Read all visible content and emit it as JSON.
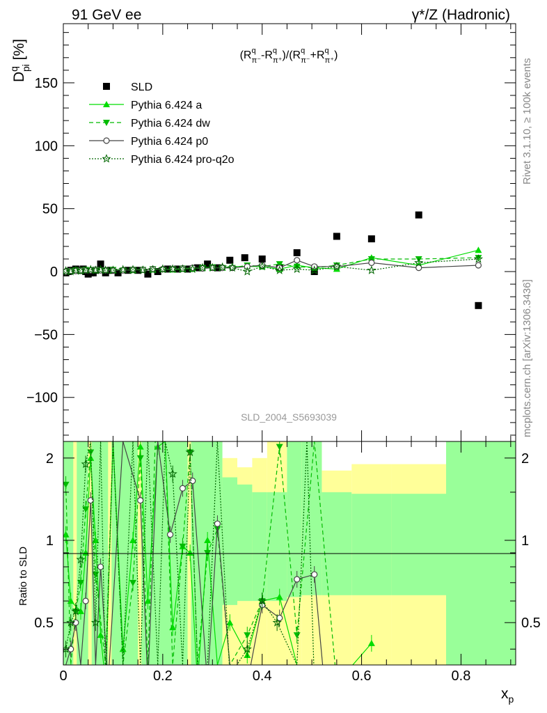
{
  "header": {
    "left": "91 GeV ee",
    "right": "γ*/Z (Hadronic)"
  },
  "side_labels": {
    "rivet": "Rivet 3.1.10, ≥ 100k events",
    "mcplots": "mcplots.cern.ch [arXiv:1306.3436]"
  },
  "chart_data": [
    {
      "type": "scatter",
      "panel": "main",
      "title": "(R^q_π⁻-R^q_π⁺)/(R^q_π⁻+R^q_π⁺)",
      "ylabel": "D^q_pi [%]",
      "xlabel": "x_p",
      "xlim": [
        0,
        0.91
      ],
      "ylim": [
        -135,
        197
      ],
      "yticks": [
        -100,
        -50,
        0,
        50,
        100,
        150
      ],
      "ytick_labels": [
        "−100",
        "−50",
        "0",
        "50",
        "100",
        "150"
      ],
      "watermark": "SLD_2004_S5693039",
      "legend_position": "top-left",
      "series": [
        {
          "name": "SLD",
          "style": "filled-square",
          "color": "#000000",
          "x": [
            0.005,
            0.01,
            0.015,
            0.02,
            0.025,
            0.03,
            0.035,
            0.04,
            0.045,
            0.05,
            0.055,
            0.06,
            0.065,
            0.075,
            0.085,
            0.095,
            0.11,
            0.13,
            0.15,
            0.17,
            0.19,
            0.21,
            0.23,
            0.25,
            0.27,
            0.29,
            0.31,
            0.335,
            0.365,
            0.4,
            0.435,
            0.47,
            0.505,
            0.55,
            0.62,
            0.715,
            0.835
          ],
          "y": [
            -1,
            0,
            1,
            1,
            2,
            1,
            1,
            2,
            0,
            -2,
            -1,
            -1,
            1,
            6,
            -1,
            1,
            -1,
            1,
            1,
            -2,
            0,
            2,
            2,
            2,
            3,
            6,
            3,
            9,
            11,
            10,
            3,
            15,
            0,
            28,
            26,
            45,
            -27
          ]
        },
        {
          "name": "Pythia 6.424 a",
          "style": "line-triangle",
          "color": "#00dd00",
          "x": [
            0.005,
            0.015,
            0.025,
            0.035,
            0.045,
            0.055,
            0.065,
            0.075,
            0.085,
            0.1,
            0.12,
            0.14,
            0.16,
            0.18,
            0.2,
            0.22,
            0.24,
            0.26,
            0.28,
            0.3,
            0.32,
            0.34,
            0.37,
            0.4,
            0.435,
            0.47,
            0.505,
            0.55,
            0.62,
            0.715,
            0.835
          ],
          "y": [
            0,
            0.5,
            1,
            1,
            1.5,
            1.5,
            1,
            1,
            1.5,
            1,
            1.5,
            1,
            2,
            1.5,
            2,
            1.5,
            2,
            2.5,
            3,
            3,
            3,
            4,
            4,
            4,
            2,
            5,
            3,
            2,
            11,
            5,
            17
          ]
        },
        {
          "name": "Pythia 6.424 dw",
          "style": "dashed-triangle-down",
          "color": "#00bb00",
          "x": [
            0.005,
            0.015,
            0.025,
            0.035,
            0.045,
            0.055,
            0.065,
            0.075,
            0.085,
            0.1,
            0.12,
            0.14,
            0.16,
            0.18,
            0.2,
            0.22,
            0.24,
            0.26,
            0.28,
            0.3,
            0.32,
            0.34,
            0.37,
            0.4,
            0.435,
            0.47,
            0.505,
            0.55,
            0.62,
            0.715,
            0.835
          ],
          "y": [
            -0.5,
            0.5,
            1,
            0.5,
            1.5,
            1,
            1.5,
            1,
            1,
            1.5,
            1,
            1.5,
            1.5,
            2,
            1.5,
            2,
            2.5,
            2,
            3,
            3.5,
            3,
            3,
            5,
            4,
            6,
            4,
            3,
            5,
            10,
            10,
            11
          ]
        },
        {
          "name": "Pythia 6.424 p0",
          "style": "line-open-circle",
          "color": "#444444",
          "x": [
            0.005,
            0.015,
            0.025,
            0.035,
            0.045,
            0.055,
            0.065,
            0.075,
            0.085,
            0.1,
            0.12,
            0.14,
            0.16,
            0.18,
            0.2,
            0.22,
            0.24,
            0.26,
            0.28,
            0.3,
            0.32,
            0.34,
            0.37,
            0.4,
            0.435,
            0.47,
            0.505,
            0.55,
            0.62,
            0.715,
            0.835
          ],
          "y": [
            0,
            0.5,
            0.5,
            1,
            1,
            1,
            1.5,
            1,
            1,
            1,
            1,
            1.5,
            1.5,
            2,
            2,
            2,
            2.5,
            3,
            2.5,
            3,
            3,
            3,
            4,
            5,
            3,
            9,
            4,
            4,
            7,
            3,
            5
          ]
        },
        {
          "name": "Pythia 6.424 pro-q2o",
          "style": "dotted-open-star",
          "color": "#006600",
          "x": [
            0.005,
            0.015,
            0.025,
            0.035,
            0.045,
            0.055,
            0.065,
            0.075,
            0.085,
            0.1,
            0.12,
            0.14,
            0.16,
            0.18,
            0.2,
            0.22,
            0.24,
            0.26,
            0.28,
            0.3,
            0.32,
            0.34,
            0.37,
            0.4,
            0.435,
            0.47,
            0.505,
            0.55,
            0.62,
            0.715,
            0.835
          ],
          "y": [
            0.5,
            0,
            1,
            0.5,
            1,
            1.5,
            1,
            1.5,
            1,
            1,
            1.5,
            1.5,
            1,
            1.5,
            2,
            2,
            2,
            2,
            3,
            3,
            3.5,
            3,
            0,
            4,
            1,
            2,
            1,
            4,
            1,
            7,
            10
          ]
        }
      ]
    },
    {
      "type": "line",
      "panel": "ratio",
      "ylabel": "Ratio to SLD",
      "xlabel": "x_p",
      "xlim": [
        0,
        0.91
      ],
      "ylim": [
        0.35,
        2.3
      ],
      "log_y": true,
      "yticks": [
        0.5,
        1,
        2
      ],
      "ytick_labels": [
        "0.5",
        "1",
        "2"
      ],
      "xticks": [
        0,
        0.2,
        0.4,
        0.6,
        0.8
      ],
      "xtick_labels": [
        "0",
        "0.2",
        "0.4",
        "0.6",
        "0.8"
      ],
      "bands": {
        "stat_color": "#99ff99",
        "total_color": "#ffff99",
        "edges": [
          0.32,
          0.35,
          0.38,
          0.41,
          0.45,
          0.48,
          0.52,
          0.58,
          0.66,
          0.77,
          0.91
        ],
        "green_lo": [
          0.58,
          0.6,
          0.6,
          0.6,
          0.62,
          0.63,
          0.63,
          0.63,
          0.63,
          0.35
        ],
        "green_hi": [
          1.7,
          1.6,
          1.5,
          1.5,
          2.3,
          2.3,
          1.5,
          1.48,
          1.48,
          2.3
        ],
        "yellow_lo": [
          0.35,
          0.35,
          0.35,
          0.35,
          0.35,
          0.35,
          0.35,
          0.35,
          0.35,
          0.35
        ],
        "yellow_hi": [
          2.0,
          1.85,
          2.0,
          2.3,
          2.3,
          2.3,
          1.8,
          1.9,
          1.9,
          2.3
        ]
      },
      "series": [
        {
          "name": "Pythia 6.424 a",
          "color": "#00dd00",
          "x": [
            0.005,
            0.015,
            0.035,
            0.045,
            0.055,
            0.065,
            0.075,
            0.085,
            0.1,
            0.12,
            0.14,
            0.155,
            0.17,
            0.19,
            0.205,
            0.22,
            0.24,
            0.255,
            0.27,
            0.29,
            0.31,
            0.335,
            0.37,
            0.4,
            0.435,
            0.47,
            0.505,
            0.55,
            0.62
          ],
          "y": [
            1.05,
            0.6,
            0.55,
            0.9,
            2.0,
            1.0,
            0.45,
            0.3,
            2.3,
            0.4,
            1.0,
            2.2,
            0.6,
            2.2,
            2.3,
            0.48,
            0.95,
            0.9,
            0.3,
            1.0,
            0.35,
            0.5,
            0.38,
            0.6,
            0.62,
            0.35,
            0.3,
            0.3,
            0.42
          ]
        },
        {
          "name": "Pythia 6.424 dw",
          "color": "#00bb00",
          "x": [
            0.005,
            0.015,
            0.025,
            0.035,
            0.045,
            0.055,
            0.065,
            0.085,
            0.1,
            0.12,
            0.14,
            0.155,
            0.17,
            0.185,
            0.205,
            0.22,
            0.24,
            0.255,
            0.27,
            0.29,
            0.31,
            0.335,
            0.37,
            0.4,
            0.435,
            0.47,
            0.505,
            0.55
          ],
          "y": [
            1.6,
            0.35,
            0.55,
            0.7,
            1.3,
            2.1,
            0.75,
            0.35,
            2.3,
            0.35,
            0.7,
            2.0,
            0.35,
            2.3,
            2.3,
            0.35,
            0.95,
            2.1,
            0.35,
            0.9,
            1.1,
            0.35,
            0.45,
            0.6,
            2.2,
            0.45,
            2.3,
            0.3
          ]
        },
        {
          "name": "Pythia 6.424 p0",
          "color": "#444444",
          "x": [
            0.005,
            0.015,
            0.025,
            0.035,
            0.045,
            0.055,
            0.065,
            0.075,
            0.09,
            0.12,
            0.155,
            0.17,
            0.19,
            0.215,
            0.24,
            0.26,
            0.29,
            0.31,
            0.335,
            0.37,
            0.4,
            0.435,
            0.47,
            0.505,
            0.525
          ],
          "y": [
            0.35,
            0.4,
            0.5,
            0.35,
            0.6,
            1.4,
            0.35,
            0.8,
            0.3,
            2.3,
            1.4,
            0.3,
            2.3,
            1.05,
            1.55,
            1.65,
            0.3,
            1.15,
            0.35,
            0.3,
            0.58,
            0.52,
            0.72,
            0.75,
            0.3
          ]
        },
        {
          "name": "Pythia 6.424 pro-q2o",
          "color": "#006600",
          "x": [
            0.005,
            0.015,
            0.025,
            0.035,
            0.045,
            0.055,
            0.065,
            0.075,
            0.085,
            0.1,
            0.12,
            0.14,
            0.155,
            0.17,
            0.19,
            0.205,
            0.22,
            0.24,
            0.255,
            0.27,
            0.29,
            0.31,
            0.335,
            0.37,
            0.4,
            0.43,
            0.47,
            0.49,
            0.505
          ],
          "y": [
            0.4,
            0.5,
            0.55,
            0.85,
            1.9,
            2.3,
            0.5,
            2.3,
            0.3,
            2.3,
            0.35,
            2.3,
            0.35,
            2.3,
            0.35,
            2.3,
            1.75,
            0.35,
            2.1,
            0.35,
            0.35,
            2.3,
            0.32,
            0.4,
            0.6,
            0.5,
            0.35,
            2.3,
            0.3
          ]
        }
      ]
    }
  ]
}
